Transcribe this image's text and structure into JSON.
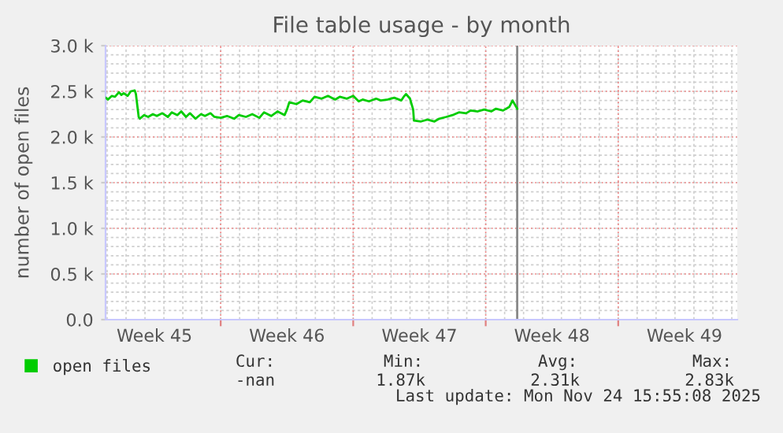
{
  "chart_data": {
    "type": "line",
    "title": "File table usage - by month",
    "ylabel": "number of open files",
    "xlim": [
      "2025-11-02T22:00",
      "2025-12-06T07:00"
    ],
    "ylim": [
      0,
      3.0
    ],
    "xticks": [
      {
        "value": "2025-11-05T12:00",
        "label": "Week 45"
      },
      {
        "value": "2025-11-12T12:00",
        "label": "Week 46"
      },
      {
        "value": "2025-11-19T12:00",
        "label": "Week 47"
      },
      {
        "value": "2025-11-26T12:00",
        "label": "Week 48"
      },
      {
        "value": "2025-12-03T12:00",
        "label": "Week 49"
      },
      {
        "value": "2025-11-09T00:00",
        "label": null
      },
      {
        "value": "2025-11-16T00:00",
        "label": null
      },
      {
        "value": "2025-11-23T00:00",
        "label": null
      },
      {
        "value": "2025-11-30T00:00",
        "label": null
      }
    ],
    "yticks": [
      {
        "value": 0,
        "label": "0.0"
      },
      {
        "value": 0.5,
        "label": "0.5 k"
      },
      {
        "value": 1.0,
        "label": "1.0 k"
      },
      {
        "value": 1.5,
        "label": "1.5 k"
      },
      {
        "value": 2.0,
        "label": "2.0 k"
      },
      {
        "value": 2.5,
        "label": "2.5 k"
      },
      {
        "value": 3.0,
        "label": "3.0 k"
      }
    ],
    "grid": true,
    "legend": "bottom left",
    "marker": "none",
    "line_style": "solid",
    "ref_lines": [
      {
        "axis": "x",
        "value": "2025-11-24T15:55",
        "color": "#888888"
      }
    ],
    "series": [
      {
        "name": "open files",
        "color": "#00cc00",
        "x": [
          "2025-11-02T22:00",
          "2025-11-03T01:00",
          "2025-11-03T06:00",
          "2025-11-03T10:00",
          "2025-11-03T15:00",
          "2025-11-03T18:00",
          "2025-11-03T21:00",
          "2025-11-04T02:00",
          "2025-11-04T06:00",
          "2025-11-04T11:00",
          "2025-11-04T12:30",
          "2025-11-04T16:00",
          "2025-11-04T17:30",
          "2025-11-04T23:00",
          "2025-11-05T04:00",
          "2025-11-05T10:00",
          "2025-11-05T15:00",
          "2025-11-05T22:00",
          "2025-11-06T05:00",
          "2025-11-06T10:00",
          "2025-11-06T17:00",
          "2025-11-06T22:00",
          "2025-11-07T04:00",
          "2025-11-07T09:00",
          "2025-11-07T16:00",
          "2025-11-07T23:00",
          "2025-11-08T04:00",
          "2025-11-08T11:00",
          "2025-11-08T16:00",
          "2025-11-09T00:00",
          "2025-11-09T08:00",
          "2025-11-09T17:00",
          "2025-11-09T23:00",
          "2025-11-10T08:00",
          "2025-11-10T16:00",
          "2025-11-11T01:00",
          "2025-11-11T07:00",
          "2025-11-11T16:00",
          "2025-11-12T00:00",
          "2025-11-12T09:00",
          "2025-11-12T12:00",
          "2025-11-12T15:00",
          "2025-11-13T00:00",
          "2025-11-13T08:00",
          "2025-11-13T17:00",
          "2025-11-13T23:00",
          "2025-11-14T08:00",
          "2025-11-14T16:00",
          "2025-11-15T01:00",
          "2025-11-15T07:00",
          "2025-11-15T16:00",
          "2025-11-16T00:00",
          "2025-11-16T07:00",
          "2025-11-16T12:00",
          "2025-11-16T20:00",
          "2025-11-17T05:00",
          "2025-11-17T11:00",
          "2025-11-17T20:00",
          "2025-11-18T04:00",
          "2025-11-18T13:00",
          "2025-11-18T16:00",
          "2025-11-18T19:00",
          "2025-11-19T00:00",
          "2025-11-19T04:00",
          "2025-11-19T05:00",
          "2025-11-19T14:00",
          "2025-11-19T22:00",
          "2025-11-20T07:00",
          "2025-11-20T13:00",
          "2025-11-20T22:00",
          "2025-11-21T06:00",
          "2025-11-21T14:00",
          "2025-11-21T23:00",
          "2025-11-22T05:00",
          "2025-11-22T14:00",
          "2025-11-22T22:00",
          "2025-11-23T07:00",
          "2025-11-23T13:00",
          "2025-11-23T22:00",
          "2025-11-24T06:00",
          "2025-11-24T10:00",
          "2025-11-24T15:55"
        ],
        "values": [
          2.43,
          2.41,
          2.45,
          2.44,
          2.49,
          2.46,
          2.48,
          2.45,
          2.5,
          2.51,
          2.47,
          2.22,
          2.2,
          2.24,
          2.22,
          2.25,
          2.23,
          2.26,
          2.22,
          2.27,
          2.24,
          2.28,
          2.22,
          2.26,
          2.2,
          2.25,
          2.23,
          2.26,
          2.22,
          2.21,
          2.23,
          2.2,
          2.24,
          2.22,
          2.25,
          2.21,
          2.27,
          2.23,
          2.28,
          2.24,
          2.3,
          2.38,
          2.36,
          2.4,
          2.38,
          2.44,
          2.42,
          2.45,
          2.41,
          2.44,
          2.42,
          2.45,
          2.39,
          2.41,
          2.39,
          2.42,
          2.4,
          2.41,
          2.43,
          2.4,
          2.44,
          2.47,
          2.42,
          2.3,
          2.18,
          2.17,
          2.19,
          2.17,
          2.2,
          2.22,
          2.24,
          2.27,
          2.26,
          2.29,
          2.28,
          2.3,
          2.28,
          2.31,
          2.29,
          2.33,
          2.4,
          2.31
        ]
      }
    ],
    "annotations": [
      "Cur:",
      "Min:",
      "Avg:",
      "Max:",
      "-nan",
      "1.87k",
      "2.31k",
      "2.83k",
      "Last update: Mon Nov 24 15:55:08 2025"
    ]
  }
}
